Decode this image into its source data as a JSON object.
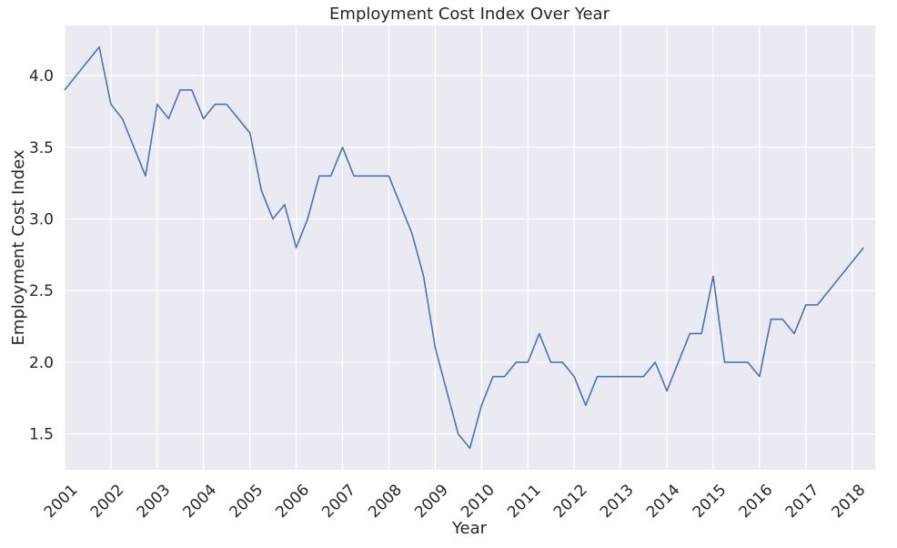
{
  "chart_data": {
    "type": "line",
    "title": "Employment Cost Index Over Year",
    "xlabel": "Year",
    "ylabel": "Employment Cost Index",
    "x_ticks": [
      "2001",
      "2002",
      "2003",
      "2004",
      "2005",
      "2006",
      "2007",
      "2008",
      "2009",
      "2010",
      "2011",
      "2012",
      "2013",
      "2014",
      "2015",
      "2016",
      "2017",
      "2018"
    ],
    "y_ticks": [
      "1.5",
      "2.0",
      "2.5",
      "3.0",
      "3.5",
      "4.0"
    ],
    "xlim": [
      "2001-01-01",
      "2018-07-01"
    ],
    "ylim": [
      1.25,
      4.35
    ],
    "grid": true,
    "colors": {
      "line": "#4c72b0",
      "plot_background": "#eaeaf2",
      "grid": "#ffffff",
      "text": "#262626"
    },
    "series": [
      {
        "points": [
          [
            "2001-01-01",
            3.9
          ],
          [
            "2001-10-01",
            4.2
          ],
          [
            "2002-01-01",
            3.8
          ],
          [
            "2002-04-01",
            3.7
          ],
          [
            "2002-10-01",
            3.3
          ],
          [
            "2003-01-01",
            3.8
          ],
          [
            "2003-04-01",
            3.7
          ],
          [
            "2003-07-01",
            3.9
          ],
          [
            "2003-10-01",
            3.9
          ],
          [
            "2004-01-01",
            3.7
          ],
          [
            "2004-04-01",
            3.8
          ],
          [
            "2004-07-01",
            3.8
          ],
          [
            "2005-01-01",
            3.6
          ],
          [
            "2005-04-01",
            3.2
          ],
          [
            "2005-07-01",
            3.0
          ],
          [
            "2005-10-01",
            3.1
          ],
          [
            "2006-01-01",
            2.8
          ],
          [
            "2006-04-01",
            3.0
          ],
          [
            "2006-07-01",
            3.3
          ],
          [
            "2006-10-01",
            3.3
          ],
          [
            "2007-01-01",
            3.5
          ],
          [
            "2007-04-01",
            3.3
          ],
          [
            "2008-01-01",
            3.3
          ],
          [
            "2008-07-01",
            2.9
          ],
          [
            "2008-10-01",
            2.6
          ],
          [
            "2009-01-01",
            2.1
          ],
          [
            "2009-07-01",
            1.5
          ],
          [
            "2009-10-01",
            1.4
          ],
          [
            "2010-01-01",
            1.7
          ],
          [
            "2010-04-01",
            1.9
          ],
          [
            "2010-07-01",
            1.9
          ],
          [
            "2010-10-01",
            2.0
          ],
          [
            "2011-01-01",
            2.0
          ],
          [
            "2011-04-01",
            2.2
          ],
          [
            "2011-07-01",
            2.0
          ],
          [
            "2011-10-01",
            2.0
          ],
          [
            "2012-01-01",
            1.9
          ],
          [
            "2012-04-01",
            1.7
          ],
          [
            "2012-07-01",
            1.9
          ],
          [
            "2013-07-01",
            1.9
          ],
          [
            "2013-10-01",
            2.0
          ],
          [
            "2014-01-01",
            1.8
          ],
          [
            "2014-07-01",
            2.2
          ],
          [
            "2014-10-01",
            2.2
          ],
          [
            "2015-01-01",
            2.6
          ],
          [
            "2015-04-01",
            2.0
          ],
          [
            "2015-10-01",
            2.0
          ],
          [
            "2016-01-01",
            1.9
          ],
          [
            "2016-04-01",
            2.3
          ],
          [
            "2016-07-01",
            2.3
          ],
          [
            "2016-10-01",
            2.2
          ],
          [
            "2017-01-01",
            2.4
          ],
          [
            "2017-04-01",
            2.4
          ],
          [
            "2018-04-01",
            2.8
          ]
        ]
      }
    ]
  }
}
